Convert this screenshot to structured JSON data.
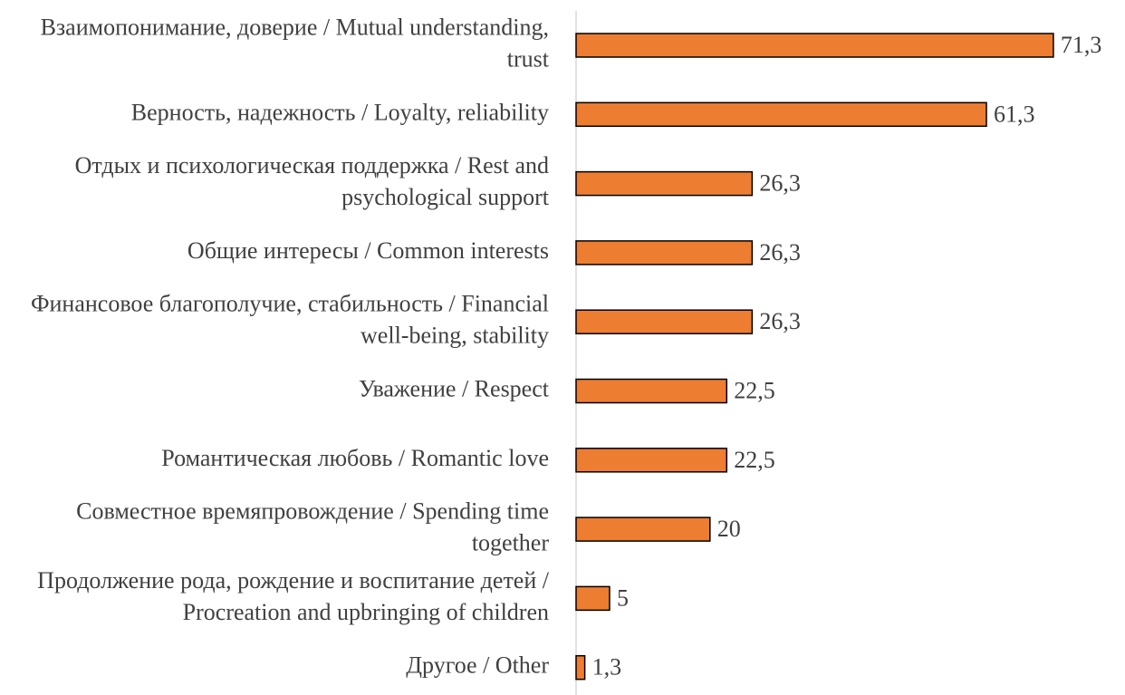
{
  "chart_data": {
    "type": "barh",
    "categories": [
      "Взаимопонимание, доверие / Mutual understanding, trust",
      "Верность, надежность / Loyalty, reliability",
      "Отдых и психологическая поддержка / Rest and psychological support",
      "Общие интересы / Common interests",
      "Финансовое благополучие, стабильность / Financial well-being, stability",
      "Уважение / Respect",
      "Романтическая любовь / Romantic love",
      "Совместное времяпровождение / Spending time together",
      "Продолжение рода, рождение и воспитание детей / Procreation and upbringing of children",
      "Другое / Other"
    ],
    "values": [
      71.3,
      61.3,
      26.3,
      26.3,
      26.3,
      22.5,
      22.5,
      20,
      5,
      1.3
    ],
    "value_labels": [
      "71,3",
      "61,3",
      "26,3",
      "26,3",
      "26,3",
      "22,5",
      "22,5",
      "20",
      "5",
      "1,3"
    ],
    "color": "#ed7d31",
    "xlim": [
      0,
      82
    ]
  }
}
